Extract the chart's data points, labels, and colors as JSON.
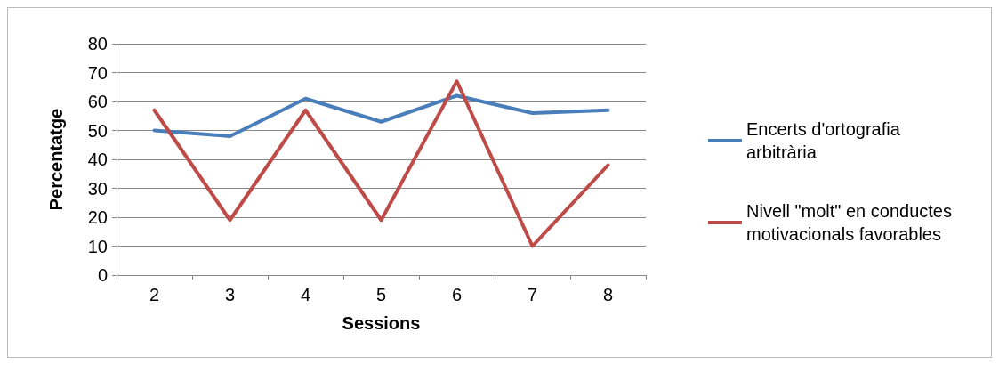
{
  "chart_data": {
    "type": "line",
    "xlabel": "Sessions",
    "ylabel": "Percentatge",
    "categories": [
      "2",
      "3",
      "4",
      "5",
      "6",
      "7",
      "8"
    ],
    "series": [
      {
        "name": "Encerts d'ortografia arbitrària",
        "color": "#4a7ebb",
        "values": [
          50,
          48,
          61,
          53,
          62,
          56,
          57
        ]
      },
      {
        "name": "Nivell \"molt\" en conductes motivacionals favorables",
        "color": "#be4b48",
        "values": [
          57,
          19,
          57,
          19,
          67,
          10,
          38
        ]
      }
    ],
    "ylim": [
      0,
      80
    ],
    "yticks": [
      0,
      10,
      20,
      30,
      40,
      50,
      60,
      70,
      80
    ],
    "grid": "y",
    "legend": "right",
    "marker": "none",
    "line_style": "solid"
  }
}
